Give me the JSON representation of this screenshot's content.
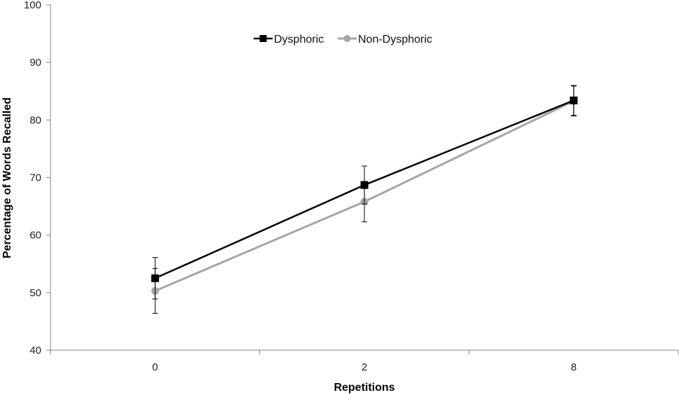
{
  "chart_data": {
    "type": "line",
    "categories": [
      "0",
      "2",
      "8"
    ],
    "xlabel": "Repetitions",
    "ylabel": "Percentage of Words Recalled",
    "ylim": [
      40,
      100
    ],
    "yticks": [
      40,
      50,
      60,
      70,
      80,
      90,
      100
    ],
    "grid": false,
    "legend_position": "top-center",
    "error_bars": true,
    "series": [
      {
        "name": "Dysphoric",
        "color": "#000000",
        "marker": "square",
        "values": [
          52.5,
          68.7,
          83.4
        ],
        "error": [
          3.6,
          3.3,
          2.6
        ]
      },
      {
        "name": "Non-Dysphoric",
        "color": "#a6a6a6",
        "marker": "circle",
        "values": [
          50.3,
          65.8,
          83.3
        ],
        "error": [
          3.9,
          3.5,
          2.6
        ]
      }
    ]
  }
}
